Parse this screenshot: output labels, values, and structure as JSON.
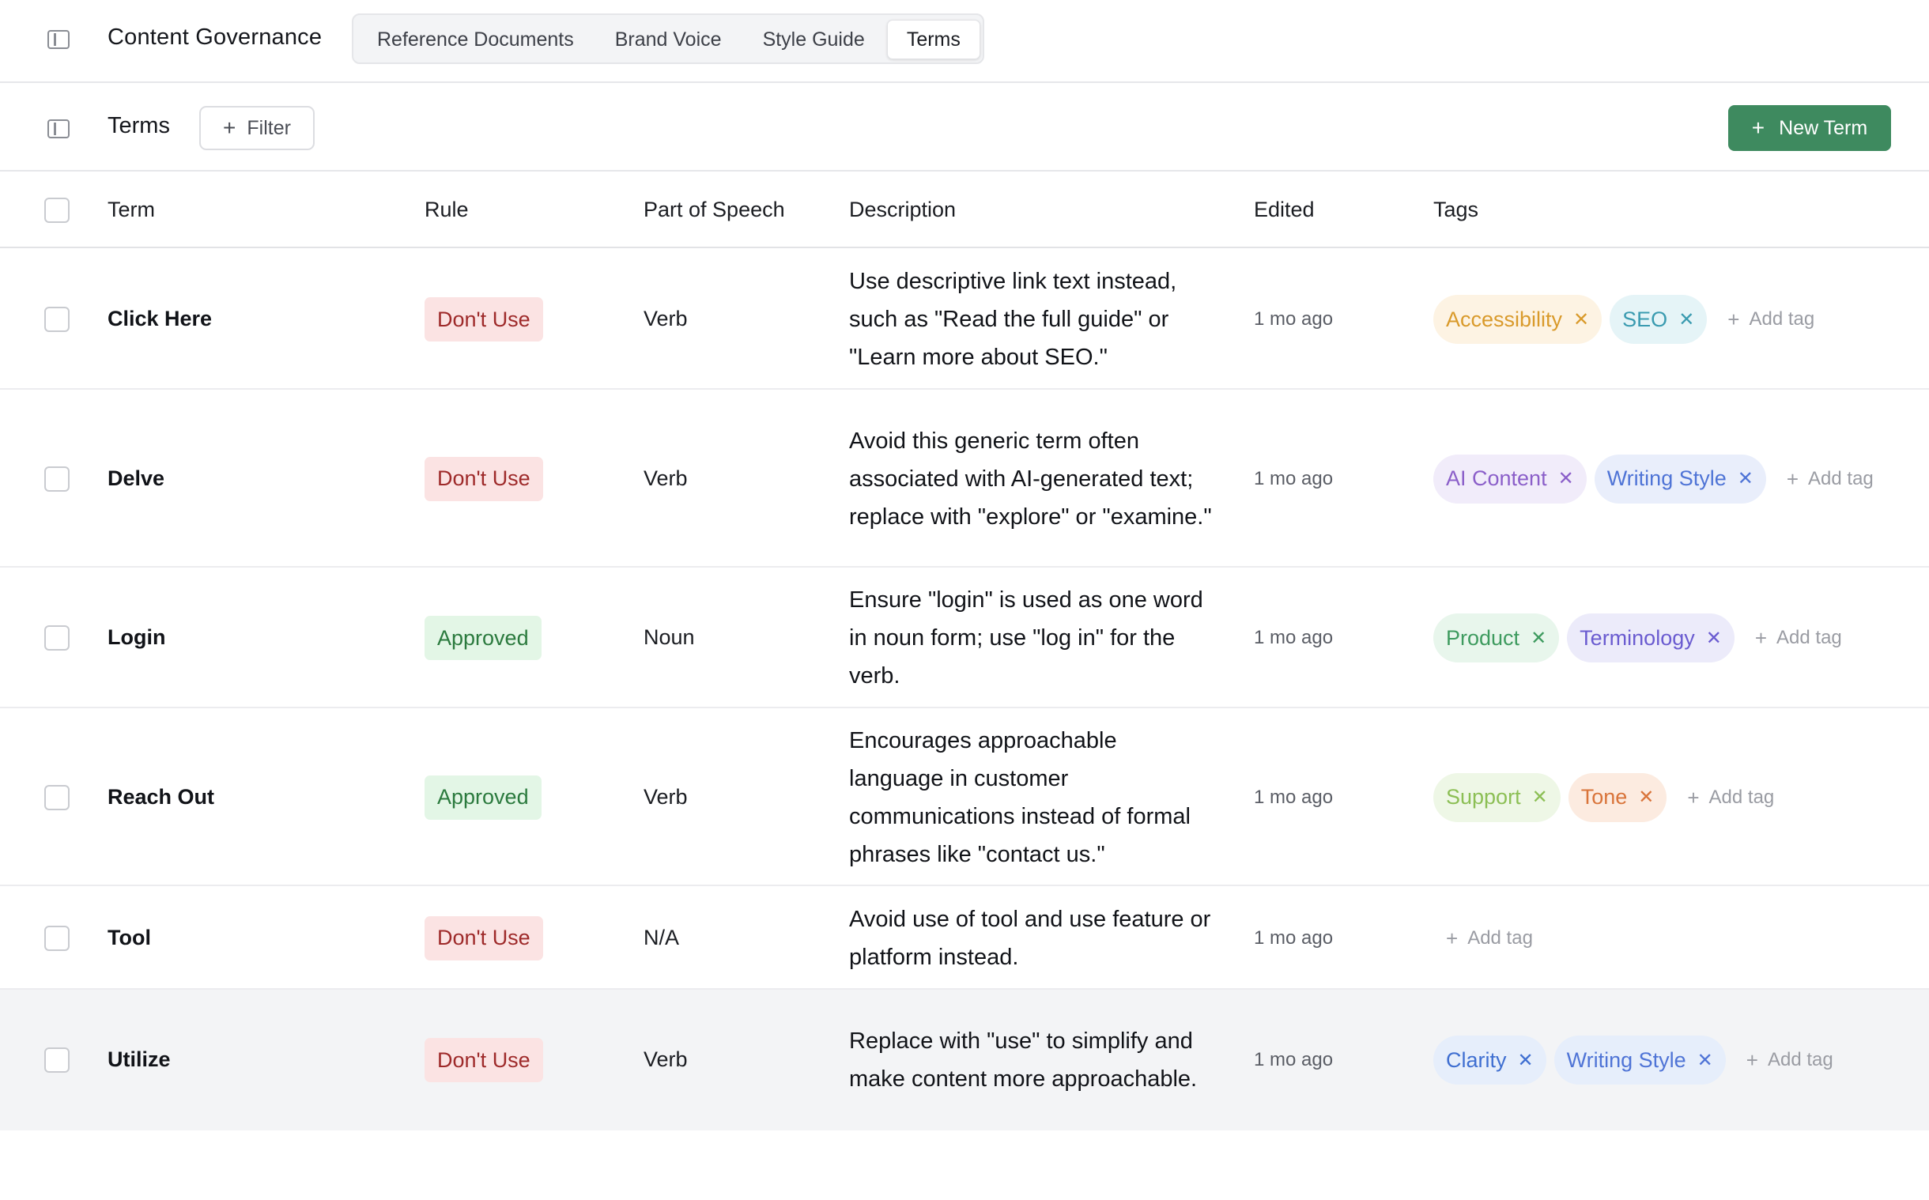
{
  "header": {
    "app_title": "Content Governance",
    "tabs": [
      {
        "label": "Reference Documents",
        "active": false
      },
      {
        "label": "Brand Voice",
        "active": false
      },
      {
        "label": "Style Guide",
        "active": false
      },
      {
        "label": "Terms",
        "active": true
      }
    ]
  },
  "toolbar": {
    "section_title": "Terms",
    "filter_label": "Filter",
    "new_term_label": "New Term"
  },
  "table": {
    "columns": [
      "Term",
      "Rule",
      "Part of Speech",
      "Description",
      "Edited",
      "Tags"
    ],
    "add_tag_label": "Add tag",
    "rows": [
      {
        "term": "Click Here",
        "rule": "Don't Use",
        "part_of_speech": "Verb",
        "description": "Use descriptive link text instead, such as \"Read the full guide\" or \"Learn more about SEO.\"",
        "edited": "1 mo ago",
        "tags": [
          {
            "label": "Accessibility",
            "bg": "#fdf3e3",
            "fg": "#d99a2b"
          },
          {
            "label": "SEO",
            "bg": "#e5f4f7",
            "fg": "#3a9bb0"
          }
        ]
      },
      {
        "term": "Delve",
        "rule": "Don't Use",
        "part_of_speech": "Verb",
        "description": "Avoid this generic term often associated with AI-generated text; replace with \"explore\" or \"examine.\"",
        "edited": "1 mo ago",
        "tags": [
          {
            "label": "AI Content",
            "bg": "#f1ecfa",
            "fg": "#8b5fc9"
          },
          {
            "label": "Writing Style",
            "bg": "#e9eefb",
            "fg": "#4f74d6"
          }
        ]
      },
      {
        "term": "Login",
        "rule": "Approved",
        "part_of_speech": "Noun",
        "description": "Ensure \"login\" is used as one word in noun form; use \"log in\" for the verb.",
        "edited": "1 mo ago",
        "tags": [
          {
            "label": "Product",
            "bg": "#e8f6ec",
            "fg": "#3e9b5f"
          },
          {
            "label": "Terminology",
            "bg": "#ecebfa",
            "fg": "#6a5bd0"
          }
        ]
      },
      {
        "term": "Reach Out",
        "rule": "Approved",
        "part_of_speech": "Verb",
        "description": "Encourages approachable language in customer communications instead of formal phrases like \"contact us.\"",
        "edited": "1 mo ago",
        "tags": [
          {
            "label": "Support",
            "bg": "#eef7e6",
            "fg": "#8cbf55"
          },
          {
            "label": "Tone",
            "bg": "#fcebe0",
            "fg": "#d9743a"
          }
        ]
      },
      {
        "term": "Tool",
        "rule": "Don't Use",
        "part_of_speech": "N/A",
        "description": "Avoid use of tool and use feature or platform instead.",
        "edited": "1 mo ago",
        "tags": []
      },
      {
        "term": "Utilize",
        "rule": "Don't Use",
        "part_of_speech": "Verb",
        "description": "Replace with \"use\" to simplify and make content more approachable.",
        "edited": "1 mo ago",
        "tags": [
          {
            "label": "Clarity",
            "bg": "#e6eefb",
            "fg": "#3f6fd1"
          },
          {
            "label": "Writing Style",
            "bg": "#e6eefb",
            "fg": "#4f74d6"
          }
        ]
      }
    ]
  }
}
